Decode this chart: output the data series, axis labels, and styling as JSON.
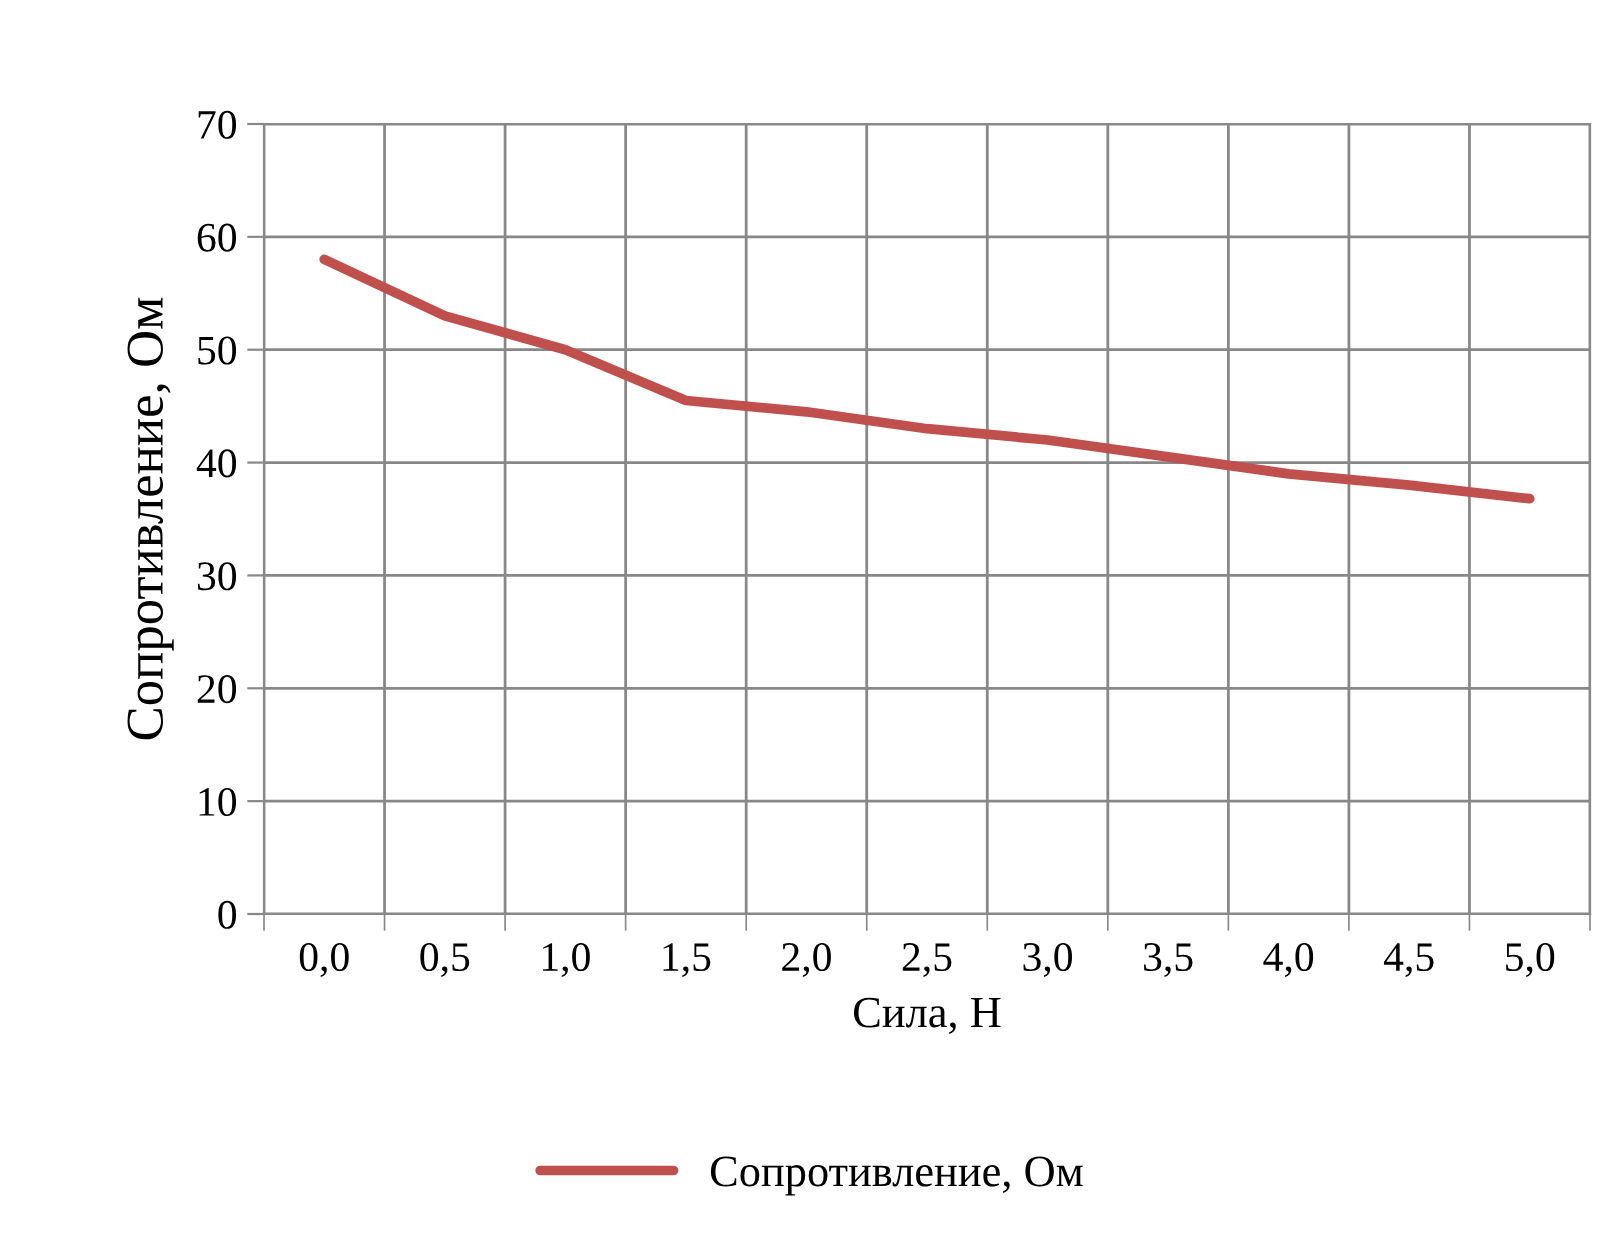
{
  "chart_data": {
    "type": "line",
    "xlabel": "Сила, Н",
    "ylabel": "Сопротивление, Ом",
    "categories": [
      "0,0",
      "0,5",
      "1,0",
      "1,5",
      "2,0",
      "2,5",
      "3,0",
      "3,5",
      "4,0",
      "4,5",
      "5,0"
    ],
    "series": [
      {
        "name": "Сопротивление, Ом",
        "color": "#c0504d",
        "values": [
          58,
          53,
          50,
          45.5,
          44.5,
          43,
          42,
          40.5,
          39,
          38,
          36.8
        ]
      }
    ],
    "ylim": [
      0,
      70
    ],
    "yticks": [
      0,
      10,
      20,
      30,
      40,
      50,
      60,
      70
    ],
    "grid": true,
    "legend": "bottom",
    "marker": "none",
    "line_style": "solid"
  }
}
